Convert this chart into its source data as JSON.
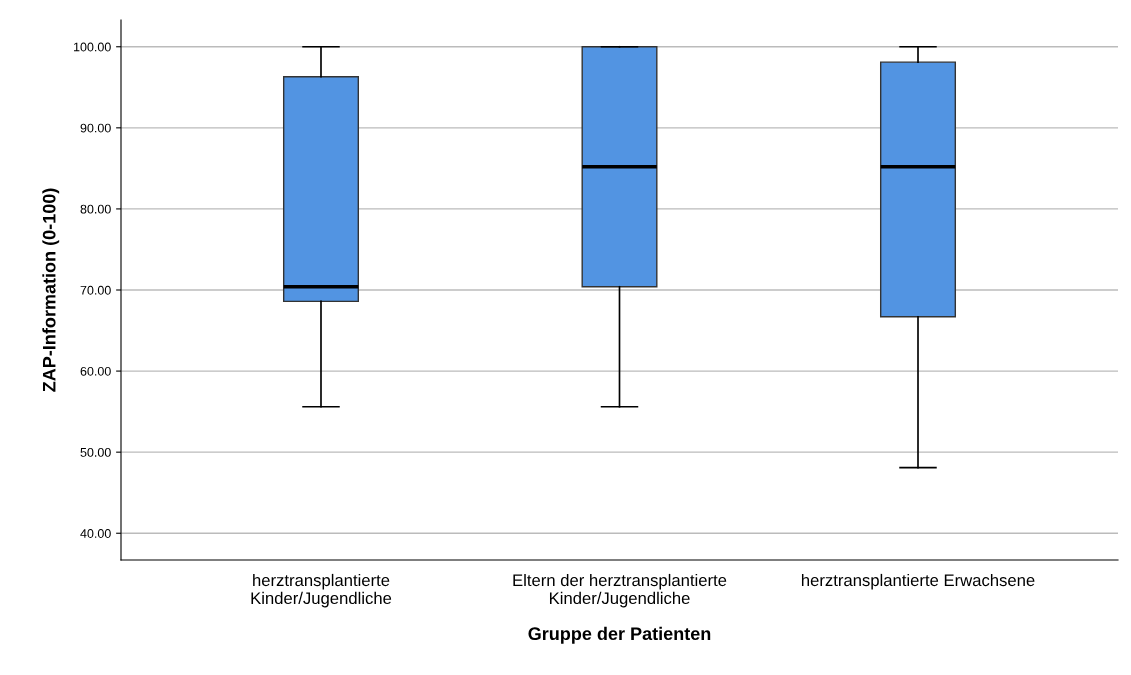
{
  "chart_data": {
    "type": "box",
    "xlabel": "Gruppe der Patienten",
    "ylabel": "ZAP-Information (0-100)",
    "categories": [
      "herztransplantierte\nKinder/Jugendliche",
      "Eltern der herztransplantierte\nKinder/Jugendliche",
      "herztransplantierte Erwachsene"
    ],
    "boxes": [
      {
        "low": 55.6,
        "q1": 68.6,
        "median": 70.4,
        "q3": 96.3,
        "high": 100
      },
      {
        "low": 55.6,
        "q1": 70.4,
        "median": 85.2,
        "q3": 100,
        "high": 100
      },
      {
        "low": 48.1,
        "q1": 66.7,
        "median": 85.2,
        "q3": 98.1,
        "high": 100
      }
    ],
    "color": "#5294e2",
    "ylim": [
      36.7,
      103.3
    ],
    "yticks": [
      {
        "value": 40,
        "label": "40.00"
      },
      {
        "value": 50,
        "label": "50.00"
      },
      {
        "value": 60,
        "label": "60.00"
      },
      {
        "value": 70,
        "label": "70.00"
      },
      {
        "value": 80,
        "label": "80.00"
      },
      {
        "value": 90,
        "label": "90.00"
      },
      {
        "value": 100,
        "label": "100.00"
      }
    ],
    "grid": "y"
  }
}
